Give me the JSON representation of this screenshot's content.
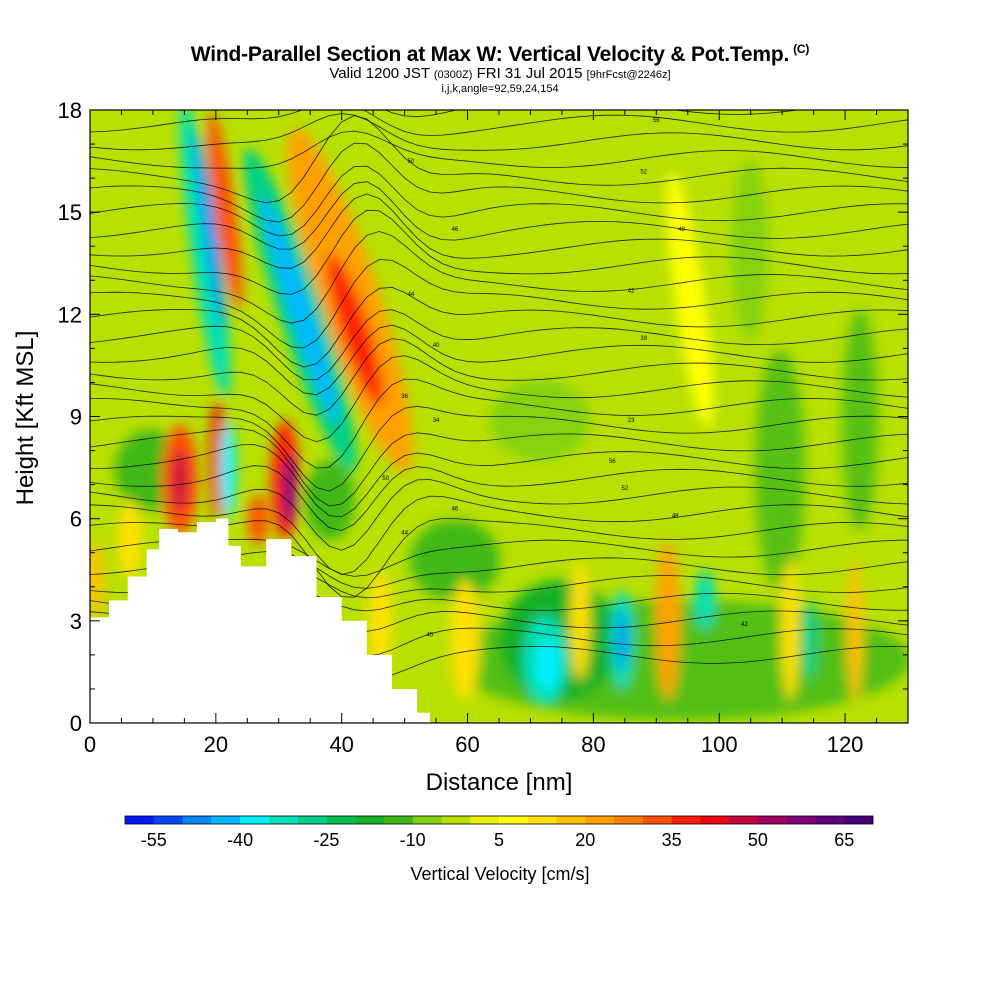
{
  "header": {
    "title": "Wind-Parallel Section at Max W: Vertical Velocity & Pot.Temp.",
    "copyright": "(C)",
    "valid_main": "Valid 1200 JST",
    "valid_utc": "(0300Z)",
    "valid_date": "FRI 31 Jul 2015",
    "forecast": "[9hrFcst@2246z]",
    "grid_info": "i,j,k,angle=92,59,24,154"
  },
  "chart_data": {
    "type": "heatmap",
    "title": "Wind-Parallel Section at Max W: Vertical Velocity & Pot.Temp.",
    "xlabel": "Distance [nm]",
    "ylabel": "Height [Kft MSL]",
    "xlim": [
      0,
      130
    ],
    "ylim": [
      0,
      18
    ],
    "x_ticks": [
      0,
      20,
      40,
      60,
      80,
      100,
      120
    ],
    "y_ticks": [
      0,
      3,
      6,
      9,
      12,
      15,
      18
    ],
    "colorbar": {
      "label": "Vertical Velocity [cm/s]",
      "tick_labels": [
        "-55",
        "-40",
        "-25",
        "-10",
        "5",
        "20",
        "35",
        "50",
        "65"
      ],
      "min": -60,
      "max": 70,
      "step": 5,
      "colors": [
        "#0018ff",
        "#0048ff",
        "#0088ff",
        "#00b8ff",
        "#00f0ff",
        "#00e0b8",
        "#00d088",
        "#00c050",
        "#18b028",
        "#40b818",
        "#80d010",
        "#b8e000",
        "#e8f000",
        "#ffff00",
        "#ffe000",
        "#ffc000",
        "#ffa000",
        "#ff8000",
        "#ff5000",
        "#ff2000",
        "#f00010",
        "#c80040",
        "#a00060",
        "#800078",
        "#600080",
        "#48007a"
      ]
    },
    "contour_labels": [
      "56",
      "50",
      "52",
      "46",
      "48",
      "44",
      "42",
      "40",
      "38",
      "36",
      "34",
      "23"
    ],
    "terrain_profile": [
      {
        "x": 0,
        "y": 3.1
      },
      {
        "x": 3,
        "y": 3.6
      },
      {
        "x": 6,
        "y": 4.3
      },
      {
        "x": 9,
        "y": 5.1
      },
      {
        "x": 11,
        "y": 5.7
      },
      {
        "x": 14,
        "y": 5.6
      },
      {
        "x": 17,
        "y": 5.9
      },
      {
        "x": 20,
        "y": 6.0
      },
      {
        "x": 22,
        "y": 5.2
      },
      {
        "x": 24,
        "y": 4.6
      },
      {
        "x": 26,
        "y": 4.6
      },
      {
        "x": 28,
        "y": 5.4
      },
      {
        "x": 30,
        "y": 5.4
      },
      {
        "x": 32,
        "y": 4.9
      },
      {
        "x": 36,
        "y": 3.7
      },
      {
        "x": 40,
        "y": 3.0
      },
      {
        "x": 44,
        "y": 2.0
      },
      {
        "x": 48,
        "y": 1.0
      },
      {
        "x": 52,
        "y": 0.3
      },
      {
        "x": 54,
        "y": 0.3
      }
    ]
  }
}
